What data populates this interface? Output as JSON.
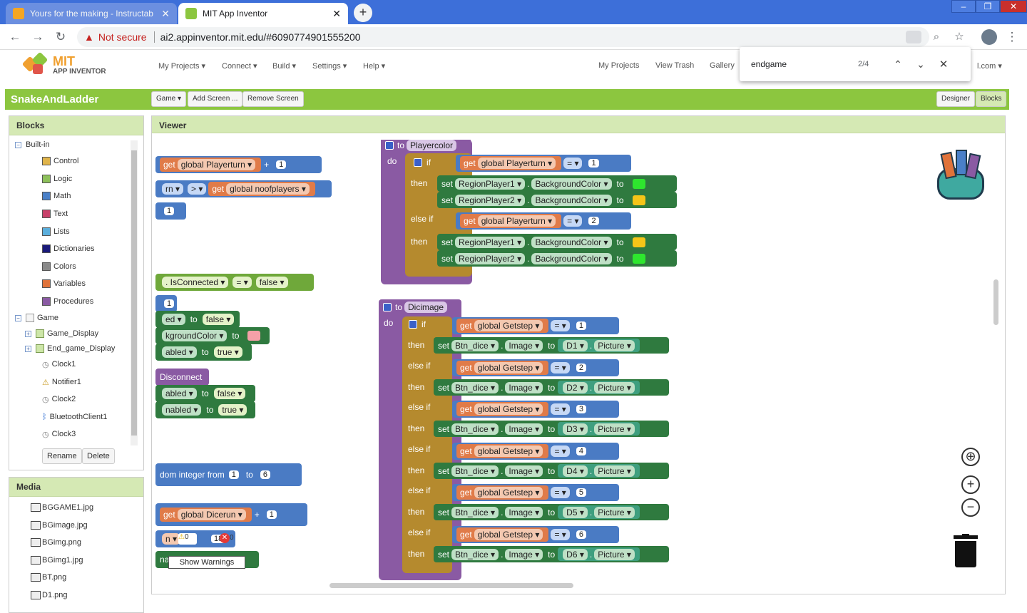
{
  "browser": {
    "tabs": [
      {
        "title": "Yours for the making - Instructab",
        "active": false
      },
      {
        "title": "MIT App Inventor",
        "active": true
      }
    ],
    "new_tab": "+",
    "url": "ai2.appinventor.mit.edu/#6090774901555200",
    "security": "Not secure",
    "window_controls": [
      "‒",
      "❐",
      "✕"
    ]
  },
  "app": {
    "logo_top": "MIT",
    "logo_bottom": "APP INVENTOR",
    "menus": [
      "My Projects ▾",
      "Connect ▾",
      "Build ▾",
      "Settings ▾",
      "Help ▾"
    ],
    "right_links": [
      "My Projects",
      "View Trash",
      "Gallery"
    ],
    "account": "l.com ▾"
  },
  "find": {
    "query": "endgame",
    "count": "2/4"
  },
  "project": {
    "name": "SnakeAndLadder",
    "screen_button": "Game ▾",
    "add_screen": "Add Screen ...",
    "remove_screen": "Remove Screen",
    "designer": "Designer",
    "blocks": "Blocks"
  },
  "blocks_panel": {
    "title": "Blocks",
    "builtin": "Built-in",
    "builtin_items": [
      {
        "label": "Control",
        "color": "#e0b44a"
      },
      {
        "label": "Logic",
        "color": "#8dc05a"
      },
      {
        "label": "Math",
        "color": "#4a80c8"
      },
      {
        "label": "Text",
        "color": "#c8416a"
      },
      {
        "label": "Lists",
        "color": "#5aaedc"
      },
      {
        "label": "Dictionaries",
        "color": "#1a1a7a"
      },
      {
        "label": "Colors",
        "color": "#8a8a8a"
      },
      {
        "label": "Variables",
        "color": "#e0733a"
      },
      {
        "label": "Procedures",
        "color": "#8a5aa3"
      }
    ],
    "screen": "Game",
    "components": [
      "Game_Display",
      "End_game_Display",
      "Clock1",
      "Notifier1",
      "Clock2",
      "BluetoothClient1",
      "Clock3"
    ],
    "rename": "Rename",
    "delete": "Delete"
  },
  "media": {
    "title": "Media",
    "files": [
      "BGGAME1.jpg",
      "BGimage.jpg",
      "BGimg.png",
      "BGimg1.jpg",
      "BT.png",
      "D1.png"
    ]
  },
  "viewer": {
    "title": "Viewer",
    "warning_tooltip": "Show Warnings",
    "warn_count": "0",
    "error_count": "0"
  },
  "blocks": {
    "left_frag": [
      {
        "id": "lf1",
        "parts": [
          "get",
          "global Playerturn ▾",
          "+",
          "1"
        ]
      },
      {
        "id": "lf2",
        "parts": [
          "rn ▾",
          "> ▾",
          "get",
          "global noofplayers ▾"
        ]
      },
      {
        "id": "lf3",
        "parts": [
          "1"
        ]
      },
      {
        "id": "lf4",
        "parts": [
          ". IsConnected ▾",
          "= ▾",
          "false ▾"
        ]
      },
      {
        "id": "lf5",
        "parts": [
          "1"
        ]
      },
      {
        "id": "lf6",
        "parts": [
          "ed ▾",
          "to",
          "false ▾"
        ]
      },
      {
        "id": "lf7",
        "parts": [
          "kgroundColor ▾",
          "to"
        ]
      },
      {
        "id": "lf8",
        "parts": [
          "abled ▾",
          "to",
          "true ▾"
        ]
      },
      {
        "id": "lf9",
        "parts": [
          "Disconnect"
        ]
      },
      {
        "id": "lf10",
        "parts": [
          "abled ▾",
          "to",
          "false ▾"
        ]
      },
      {
        "id": "lf11",
        "parts": [
          "nabled ▾",
          "to",
          "true ▾"
        ]
      },
      {
        "id": "lf12",
        "parts": [
          "dom integer from",
          "1",
          "to",
          "6"
        ]
      },
      {
        "id": "lf13",
        "parts": [
          "get",
          "global Dicerun ▾",
          "+",
          "1"
        ]
      },
      {
        "id": "lf14",
        "parts": [
          "n ▾",
          "18"
        ]
      },
      {
        "id": "lf15",
        "parts": [
          "nab"
        ]
      }
    ],
    "playercolor": {
      "header": "to",
      "name": "Playercolor",
      "do": "do",
      "if": "if",
      "then": "then",
      "elseif": "else if",
      "get": "get",
      "var": "global Playerturn ▾",
      "eq": "= ▾",
      "n1": "1",
      "n2": "2",
      "set": "set",
      "rp1": "RegionPlayer1 ▾",
      "rp2": "RegionPlayer2 ▾",
      "prop": "BackgroundColor ▾",
      "to": "to",
      "green": "#2ee62e",
      "yellow": "#f5c518"
    },
    "dicimage": {
      "header": "to",
      "name": "Dicimage",
      "do": "do",
      "if": "if",
      "then": "then",
      "elseif": "else if",
      "get": "get",
      "var": "global Getstep ▾",
      "eq": "= ▾",
      "set": "set",
      "btn": "Btn_dice ▾",
      "prop": "Image ▾",
      "to": "to",
      "pic": "Picture ▾",
      "rows": [
        {
          "n": "1",
          "d": "D1 ▾"
        },
        {
          "n": "2",
          "d": "D2 ▾"
        },
        {
          "n": "3",
          "d": "D3 ▾"
        },
        {
          "n": "4",
          "d": "D4 ▾"
        },
        {
          "n": "5",
          "d": "D5 ▾"
        },
        {
          "n": "6",
          "d": "D6 ▾"
        }
      ]
    }
  }
}
